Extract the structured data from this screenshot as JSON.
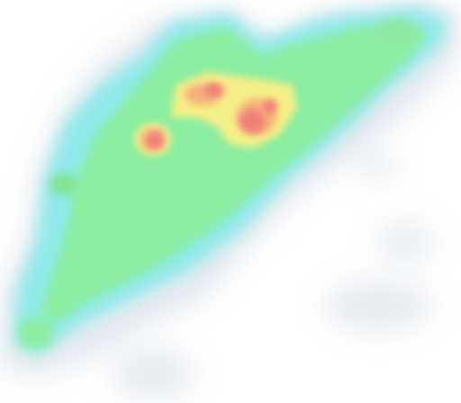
{
  "map": {
    "type": "heatmap",
    "background": "#ffffff",
    "colors": {
      "faint": "#dfe6ee",
      "cyan": "#8de9ea",
      "green": "#8ceea0",
      "bright_green": "#7fe487",
      "yellow": "#f4ee86",
      "orange": "#f7b07a",
      "red": "#f0807a"
    }
  }
}
